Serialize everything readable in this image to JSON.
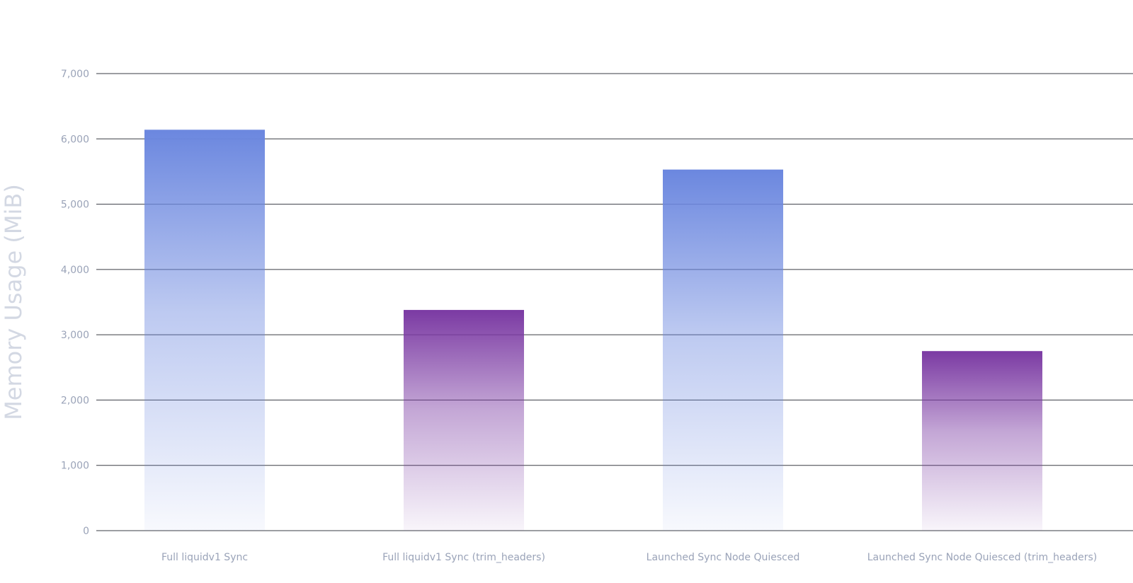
{
  "chart_data": {
    "type": "bar",
    "title": "",
    "xlabel": "",
    "ylabel": "Memory Usage (MiB)",
    "ylim": [
      0,
      7000
    ],
    "yticks": [
      0,
      1000,
      2000,
      3000,
      4000,
      5000,
      6000,
      7000
    ],
    "ytick_labels": [
      "0",
      "1,000",
      "2,000",
      "3,000",
      "4,000",
      "5,000",
      "6,000",
      "7,000"
    ],
    "grid": true,
    "legend": "none",
    "categories": [
      "Full liquidv1 Sync",
      "Full liquidv1 Sync (trim_headers)",
      "Launched Sync Node Quiesced",
      "Launched Sync Node Quiesced (trim_headers)"
    ],
    "values": [
      6140,
      3380,
      5530,
      2750
    ],
    "bar_colors": [
      "#6b87df",
      "#7b3aa3",
      "#6b87df",
      "#7b3aa3"
    ],
    "colors": {
      "blue_bar": "#6b87df",
      "purple_bar": "#7b3aa3",
      "gridline": "#3a3d44",
      "tick_text": "#9aa3b8",
      "axis_title_text": "#d3d8e3"
    }
  }
}
